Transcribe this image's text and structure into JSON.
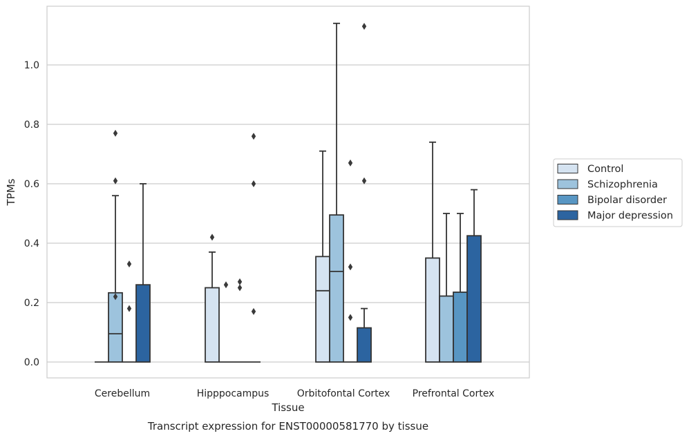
{
  "chart_data": {
    "type": "boxplot",
    "title": "",
    "xlabel": "Tissue",
    "ylabel": "TPMs",
    "caption": "Transcript expression for ENST00000581770 by tissue",
    "categories": [
      "Cerebellum",
      "Hipppocampus",
      "Orbitofontal Cortex",
      "Prefrontal Cortex"
    ],
    "ylim": [
      -0.055,
      1.2
    ],
    "yticks": [
      0.0,
      0.2,
      0.4,
      0.6,
      0.8,
      1.0
    ],
    "ytick_labels": [
      "0.0",
      "0.2",
      "0.4",
      "0.6",
      "0.8",
      "1.0"
    ],
    "grid": true,
    "legend_position": "right",
    "series": [
      {
        "name": "Control",
        "color": "#d5e3f1",
        "boxes": [
          {
            "q1": 0.0,
            "median": 0.0,
            "q3": 0.0,
            "whisker_low": 0.0,
            "whisker_high": 0.0,
            "outliers": []
          },
          {
            "q1": 0.0,
            "median": 0.0,
            "q3": 0.25,
            "whisker_low": 0.0,
            "whisker_high": 0.37,
            "outliers": [
              0.42
            ]
          },
          {
            "q1": 0.0,
            "median": 0.24,
            "q3": 0.355,
            "whisker_low": 0.0,
            "whisker_high": 0.71,
            "outliers": []
          },
          {
            "q1": 0.0,
            "median": 0.0,
            "q3": 0.35,
            "whisker_low": 0.0,
            "whisker_high": 0.74,
            "outliers": []
          }
        ]
      },
      {
        "name": "Schizophrenia",
        "color": "#9dc3dd",
        "boxes": [
          {
            "q1": 0.0,
            "median": 0.095,
            "q3": 0.233,
            "whisker_low": 0.0,
            "whisker_high": 0.56,
            "outliers": [
              0.22,
              0.61,
              0.77
            ]
          },
          {
            "q1": 0.0,
            "median": 0.0,
            "q3": 0.0,
            "whisker_low": 0.0,
            "whisker_high": 0.0,
            "outliers": [
              0.26
            ]
          },
          {
            "q1": 0.0,
            "median": 0.305,
            "q3": 0.495,
            "whisker_low": 0.0,
            "whisker_high": 1.14,
            "outliers": []
          },
          {
            "q1": 0.0,
            "median": 0.0,
            "q3": 0.222,
            "whisker_low": 0.0,
            "whisker_high": 0.5,
            "outliers": []
          }
        ]
      },
      {
        "name": "Bipolar disorder",
        "color": "#5896c3",
        "boxes": [
          {
            "q1": 0.0,
            "median": 0.0,
            "q3": 0.0,
            "whisker_low": 0.0,
            "whisker_high": 0.0,
            "outliers": [
              0.18,
              0.33
            ]
          },
          {
            "q1": 0.0,
            "median": 0.0,
            "q3": 0.0,
            "whisker_low": 0.0,
            "whisker_high": 0.0,
            "outliers": [
              0.25,
              0.27
            ]
          },
          {
            "q1": 0.0,
            "median": 0.0,
            "q3": 0.0,
            "whisker_low": 0.0,
            "whisker_high": 0.0,
            "outliers": [
              0.15,
              0.32,
              0.67
            ]
          },
          {
            "q1": 0.0,
            "median": 0.0,
            "q3": 0.235,
            "whisker_low": 0.0,
            "whisker_high": 0.5,
            "outliers": []
          }
        ]
      },
      {
        "name": "Major depression",
        "color": "#2c64a0",
        "boxes": [
          {
            "q1": 0.0,
            "median": 0.0,
            "q3": 0.26,
            "whisker_low": 0.0,
            "whisker_high": 0.6,
            "outliers": []
          },
          {
            "q1": 0.0,
            "median": 0.0,
            "q3": 0.0,
            "whisker_low": 0.0,
            "whisker_high": 0.0,
            "outliers": [
              0.17,
              0.6,
              0.76
            ]
          },
          {
            "q1": 0.0,
            "median": 0.0,
            "q3": 0.115,
            "whisker_low": 0.0,
            "whisker_high": 0.18,
            "outliers": [
              0.61,
              1.13
            ]
          },
          {
            "q1": 0.0,
            "median": 0.0,
            "q3": 0.425,
            "whisker_low": 0.0,
            "whisker_high": 0.58,
            "outliers": []
          }
        ]
      }
    ]
  }
}
